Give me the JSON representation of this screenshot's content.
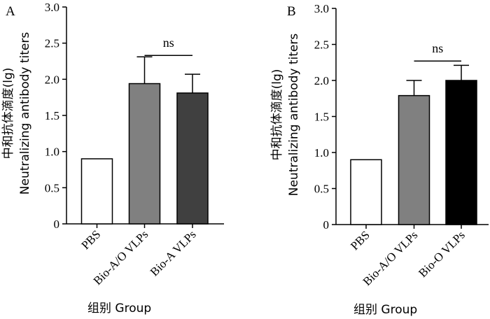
{
  "chart_data": [
    {
      "type": "bar",
      "panel_label": "A",
      "categories": [
        "PBS",
        "Bio-A/O VLPs",
        "Bio-A VLPs"
      ],
      "values": [
        0.9,
        1.94,
        1.81
      ],
      "errors": [
        0,
        0.37,
        0.26
      ],
      "colors": [
        "#ffffff",
        "#808080",
        "#404040"
      ],
      "ylabel_cn": "中和抗体滴度(lg)",
      "ylabel_en": "Neutralizing antibody titers",
      "xlabel": "组别  Group",
      "ylim": [
        0,
        3.0
      ],
      "yticks": [
        "0",
        "0.5",
        "1.0",
        "1.5",
        "2.0",
        "2.5",
        "3.0"
      ],
      "annotation": {
        "text": "ns",
        "between": [
          1,
          2
        ],
        "y": 2.33
      }
    },
    {
      "type": "bar",
      "panel_label": "B",
      "categories": [
        "PBS",
        "Bio-A/O VLPs",
        "Bio-O VLPs"
      ],
      "values": [
        0.9,
        1.79,
        2.0
      ],
      "errors": [
        0,
        0.21,
        0.21
      ],
      "colors": [
        "#ffffff",
        "#808080",
        "#000000"
      ],
      "ylabel_cn": "中和抗体滴度(lg)",
      "ylabel_en": "Neutralizing antibody titers",
      "xlabel": "组别  Group",
      "ylim": [
        0,
        3.0
      ],
      "yticks": [
        "0",
        "0.5",
        "1.0",
        "1.5",
        "2.0",
        "2.5",
        "3.0"
      ],
      "annotation": {
        "text": "ns",
        "between": [
          1,
          2
        ],
        "y": 2.27
      }
    }
  ]
}
